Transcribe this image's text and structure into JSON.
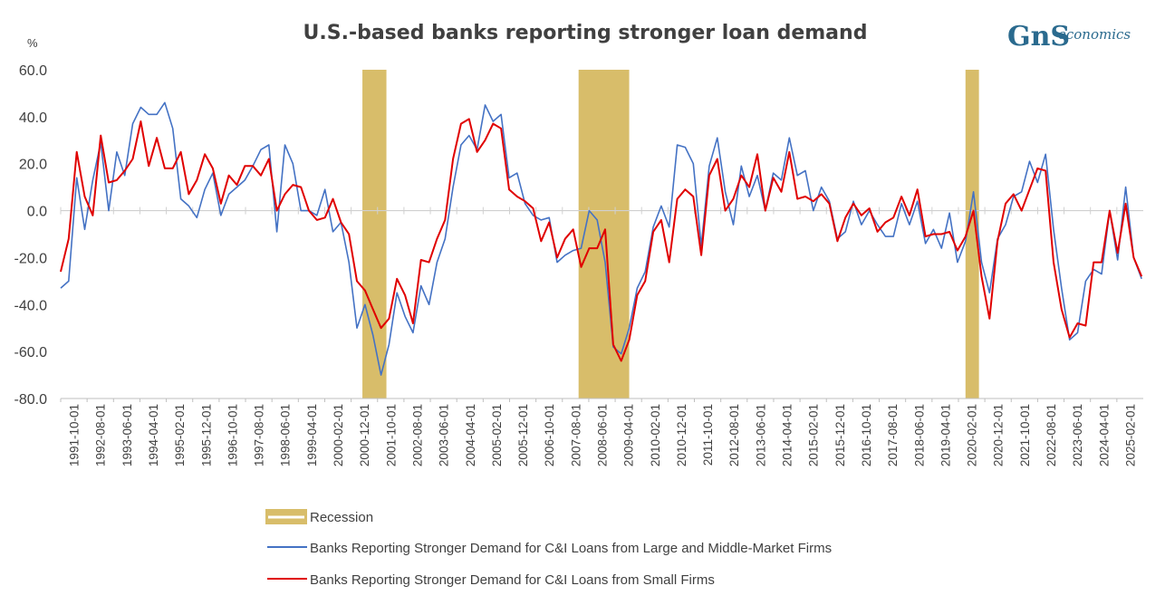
{
  "logo": {
    "mark": "GnS",
    "text": "economics"
  },
  "chart_data": {
    "type": "line",
    "title": "U.S.-based banks reporting stronger loan demand",
    "ylabel": "%",
    "ylim": [
      -80,
      60
    ],
    "yticks": [
      60,
      40,
      20,
      0,
      -20,
      -40,
      -60,
      -80
    ],
    "ytick_labels": [
      "60.0",
      "40.0",
      "20.0",
      "0.0",
      "-20.0",
      "-40.0",
      "-60.0",
      "-80.0"
    ],
    "xlim": [
      1991.75,
      2025.55
    ],
    "xtick_labels": [
      "1991-10-01",
      "1992-08-01",
      "1993-06-01",
      "1994-04-01",
      "1995-02-01",
      "1995-12-01",
      "1996-10-01",
      "1997-08-01",
      "1998-06-01",
      "1999-04-01",
      "2000-02-01",
      "2000-12-01",
      "2001-10-01",
      "2002-08-01",
      "2003-06-01",
      "2004-04-01",
      "2005-02-01",
      "2005-12-01",
      "2006-10-01",
      "2007-08-01",
      "2008-06-01",
      "2009-04-01",
      "2010-02-01",
      "2010-12-01",
      "2011-10-01",
      "2012-08-01",
      "2013-06-01",
      "2014-04-01",
      "2015-02-01",
      "2015-12-01",
      "2016-10-01",
      "2017-08-01",
      "2018-06-01",
      "2019-04-01",
      "2020-02-01",
      "2020-12-01",
      "2021-10-01",
      "2022-08-01",
      "2023-06-01",
      "2024-04-01",
      "2025-02-01"
    ],
    "grid": false,
    "legend_position": "bottom",
    "recessions": [
      {
        "start": 2001.17,
        "end": 2001.92
      },
      {
        "start": 2007.92,
        "end": 2009.5
      },
      {
        "start": 2020.0,
        "end": 2020.42
      }
    ],
    "series": [
      {
        "name": "Recession",
        "kind": "band",
        "color": "#d8bd6a"
      },
      {
        "name": "Banks Reporting Stronger Demand for C&I Loans from Large and Middle-Market Firms",
        "color": "#4472c4",
        "points": [
          [
            1991.75,
            -33
          ],
          [
            1992.0,
            -30
          ],
          [
            1992.25,
            14
          ],
          [
            1992.5,
            -8
          ],
          [
            1992.75,
            13
          ],
          [
            1993.0,
            29
          ],
          [
            1993.25,
            0
          ],
          [
            1993.5,
            25
          ],
          [
            1993.75,
            15
          ],
          [
            1994.0,
            37
          ],
          [
            1994.25,
            44
          ],
          [
            1994.5,
            41
          ],
          [
            1994.75,
            41
          ],
          [
            1995.0,
            46
          ],
          [
            1995.25,
            35
          ],
          [
            1995.5,
            5
          ],
          [
            1995.75,
            2
          ],
          [
            1996.0,
            -3
          ],
          [
            1996.25,
            9
          ],
          [
            1996.5,
            16
          ],
          [
            1996.75,
            -2
          ],
          [
            1997.0,
            7
          ],
          [
            1997.25,
            10
          ],
          [
            1997.5,
            13
          ],
          [
            1997.75,
            19
          ],
          [
            1998.0,
            26
          ],
          [
            1998.25,
            28
          ],
          [
            1998.5,
            -9
          ],
          [
            1998.75,
            28
          ],
          [
            1999.0,
            20
          ],
          [
            1999.25,
            0
          ],
          [
            1999.5,
            0
          ],
          [
            1999.75,
            -2
          ],
          [
            2000.0,
            9
          ],
          [
            2000.25,
            -9
          ],
          [
            2000.5,
            -5
          ],
          [
            2000.75,
            -22
          ],
          [
            2001.0,
            -50
          ],
          [
            2001.25,
            -40
          ],
          [
            2001.5,
            -53
          ],
          [
            2001.75,
            -70
          ],
          [
            2002.0,
            -57
          ],
          [
            2002.25,
            -35
          ],
          [
            2002.5,
            -45
          ],
          [
            2002.75,
            -52
          ],
          [
            2003.0,
            -32
          ],
          [
            2003.25,
            -40
          ],
          [
            2003.5,
            -22
          ],
          [
            2003.75,
            -12
          ],
          [
            2004.0,
            10
          ],
          [
            2004.25,
            28
          ],
          [
            2004.5,
            32
          ],
          [
            2004.75,
            26
          ],
          [
            2005.0,
            45
          ],
          [
            2005.25,
            38
          ],
          [
            2005.5,
            41
          ],
          [
            2005.75,
            14
          ],
          [
            2006.0,
            16
          ],
          [
            2006.25,
            3
          ],
          [
            2006.5,
            -2
          ],
          [
            2006.75,
            -4
          ],
          [
            2007.0,
            -3
          ],
          [
            2007.25,
            -22
          ],
          [
            2007.5,
            -19
          ],
          [
            2007.75,
            -17
          ],
          [
            2008.0,
            -16
          ],
          [
            2008.25,
            0
          ],
          [
            2008.5,
            -4
          ],
          [
            2008.75,
            -22
          ],
          [
            2009.0,
            -58
          ],
          [
            2009.25,
            -61
          ],
          [
            2009.5,
            -50
          ],
          [
            2009.75,
            -33
          ],
          [
            2010.0,
            -26
          ],
          [
            2010.25,
            -7
          ],
          [
            2010.5,
            2
          ],
          [
            2010.75,
            -7
          ],
          [
            2011.0,
            28
          ],
          [
            2011.25,
            27
          ],
          [
            2011.5,
            20
          ],
          [
            2011.75,
            -15
          ],
          [
            2012.0,
            19
          ],
          [
            2012.25,
            31
          ],
          [
            2012.5,
            8
          ],
          [
            2012.75,
            -6
          ],
          [
            2013.0,
            19
          ],
          [
            2013.25,
            6
          ],
          [
            2013.5,
            15
          ],
          [
            2013.75,
            0
          ],
          [
            2014.0,
            16
          ],
          [
            2014.25,
            13
          ],
          [
            2014.5,
            31
          ],
          [
            2014.75,
            15
          ],
          [
            2015.0,
            17
          ],
          [
            2015.25,
            0
          ],
          [
            2015.5,
            10
          ],
          [
            2015.75,
            4
          ],
          [
            2016.0,
            -12
          ],
          [
            2016.25,
            -9
          ],
          [
            2016.5,
            4
          ],
          [
            2016.75,
            -6
          ],
          [
            2017.0,
            0
          ],
          [
            2017.25,
            -6
          ],
          [
            2017.5,
            -11
          ],
          [
            2017.75,
            -11
          ],
          [
            2018.0,
            3
          ],
          [
            2018.25,
            -6
          ],
          [
            2018.5,
            4
          ],
          [
            2018.75,
            -14
          ],
          [
            2019.0,
            -8
          ],
          [
            2019.25,
            -16
          ],
          [
            2019.5,
            -1
          ],
          [
            2019.75,
            -22
          ],
          [
            2020.0,
            -13
          ],
          [
            2020.25,
            8
          ],
          [
            2020.5,
            -22
          ],
          [
            2020.75,
            -35
          ],
          [
            2021.0,
            -12
          ],
          [
            2021.25,
            -6
          ],
          [
            2021.5,
            6
          ],
          [
            2021.75,
            8
          ],
          [
            2022.0,
            21
          ],
          [
            2022.25,
            12
          ],
          [
            2022.5,
            24
          ],
          [
            2022.75,
            -8
          ],
          [
            2023.0,
            -33
          ],
          [
            2023.25,
            -55
          ],
          [
            2023.5,
            -52
          ],
          [
            2023.75,
            -30
          ],
          [
            2024.0,
            -25
          ],
          [
            2024.25,
            -27
          ],
          [
            2024.5,
            0
          ],
          [
            2024.75,
            -21
          ],
          [
            2025.0,
            10
          ],
          [
            2025.25,
            -20
          ],
          [
            2025.5,
            -29
          ]
        ]
      },
      {
        "name": "Banks Reporting Stronger Demand for C&I Loans from Small Firms",
        "color": "#e00000",
        "points": [
          [
            1991.75,
            -26
          ],
          [
            1992.0,
            -12
          ],
          [
            1992.25,
            25
          ],
          [
            1992.5,
            6
          ],
          [
            1992.75,
            -2
          ],
          [
            1993.0,
            32
          ],
          [
            1993.25,
            12
          ],
          [
            1993.5,
            13
          ],
          [
            1993.75,
            17
          ],
          [
            1994.0,
            22
          ],
          [
            1994.25,
            38
          ],
          [
            1994.5,
            19
          ],
          [
            1994.75,
            31
          ],
          [
            1995.0,
            18
          ],
          [
            1995.25,
            18
          ],
          [
            1995.5,
            25
          ],
          [
            1995.75,
            7
          ],
          [
            1996.0,
            13
          ],
          [
            1996.25,
            24
          ],
          [
            1996.5,
            18
          ],
          [
            1996.75,
            3
          ],
          [
            1997.0,
            15
          ],
          [
            1997.25,
            11
          ],
          [
            1997.5,
            19
          ],
          [
            1997.75,
            19
          ],
          [
            1998.0,
            15
          ],
          [
            1998.25,
            22
          ],
          [
            1998.5,
            0
          ],
          [
            1998.75,
            7
          ],
          [
            1999.0,
            11
          ],
          [
            1999.25,
            10
          ],
          [
            1999.5,
            0
          ],
          [
            1999.75,
            -4
          ],
          [
            2000.0,
            -3
          ],
          [
            2000.25,
            5
          ],
          [
            2000.5,
            -5
          ],
          [
            2000.75,
            -10
          ],
          [
            2001.0,
            -30
          ],
          [
            2001.25,
            -34
          ],
          [
            2001.5,
            -42
          ],
          [
            2001.75,
            -50
          ],
          [
            2002.0,
            -46
          ],
          [
            2002.25,
            -29
          ],
          [
            2002.5,
            -36
          ],
          [
            2002.75,
            -48
          ],
          [
            2003.0,
            -21
          ],
          [
            2003.25,
            -22
          ],
          [
            2003.5,
            -12
          ],
          [
            2003.75,
            -4
          ],
          [
            2004.0,
            22
          ],
          [
            2004.25,
            37
          ],
          [
            2004.5,
            39
          ],
          [
            2004.75,
            25
          ],
          [
            2005.0,
            30
          ],
          [
            2005.25,
            37
          ],
          [
            2005.5,
            35
          ],
          [
            2005.75,
            9
          ],
          [
            2006.0,
            6
          ],
          [
            2006.25,
            4
          ],
          [
            2006.5,
            1
          ],
          [
            2006.75,
            -13
          ],
          [
            2007.0,
            -5
          ],
          [
            2007.25,
            -20
          ],
          [
            2007.5,
            -12
          ],
          [
            2007.75,
            -8
          ],
          [
            2008.0,
            -24
          ],
          [
            2008.25,
            -16
          ],
          [
            2008.5,
            -16
          ],
          [
            2008.75,
            -8
          ],
          [
            2009.0,
            -57
          ],
          [
            2009.25,
            -64
          ],
          [
            2009.5,
            -55
          ],
          [
            2009.75,
            -36
          ],
          [
            2010.0,
            -30
          ],
          [
            2010.25,
            -9
          ],
          [
            2010.5,
            -4
          ],
          [
            2010.75,
            -22
          ],
          [
            2011.0,
            5
          ],
          [
            2011.25,
            9
          ],
          [
            2011.5,
            6
          ],
          [
            2011.75,
            -19
          ],
          [
            2012.0,
            15
          ],
          [
            2012.25,
            22
          ],
          [
            2012.5,
            0
          ],
          [
            2012.75,
            5
          ],
          [
            2013.0,
            15
          ],
          [
            2013.25,
            10
          ],
          [
            2013.5,
            24
          ],
          [
            2013.75,
            0
          ],
          [
            2014.0,
            14
          ],
          [
            2014.25,
            8
          ],
          [
            2014.5,
            25
          ],
          [
            2014.75,
            5
          ],
          [
            2015.0,
            6
          ],
          [
            2015.25,
            4
          ],
          [
            2015.5,
            7
          ],
          [
            2015.75,
            3
          ],
          [
            2016.0,
            -13
          ],
          [
            2016.25,
            -3
          ],
          [
            2016.5,
            3
          ],
          [
            2016.75,
            -2
          ],
          [
            2017.0,
            1
          ],
          [
            2017.25,
            -9
          ],
          [
            2017.5,
            -5
          ],
          [
            2017.75,
            -3
          ],
          [
            2018.0,
            6
          ],
          [
            2018.25,
            -2
          ],
          [
            2018.5,
            9
          ],
          [
            2018.75,
            -11
          ],
          [
            2019.0,
            -10
          ],
          [
            2019.25,
            -10
          ],
          [
            2019.5,
            -9
          ],
          [
            2019.75,
            -17
          ],
          [
            2020.0,
            -11
          ],
          [
            2020.25,
            0
          ],
          [
            2020.5,
            -28
          ],
          [
            2020.75,
            -46
          ],
          [
            2021.0,
            -13
          ],
          [
            2021.25,
            3
          ],
          [
            2021.5,
            7
          ],
          [
            2021.75,
            0
          ],
          [
            2022.0,
            9
          ],
          [
            2022.25,
            18
          ],
          [
            2022.5,
            17
          ],
          [
            2022.75,
            -22
          ],
          [
            2023.0,
            -42
          ],
          [
            2023.25,
            -54
          ],
          [
            2023.5,
            -48
          ],
          [
            2023.75,
            -49
          ],
          [
            2024.0,
            -22
          ],
          [
            2024.25,
            -22
          ],
          [
            2024.5,
            0
          ],
          [
            2024.75,
            -18
          ],
          [
            2025.0,
            3
          ],
          [
            2025.25,
            -20
          ],
          [
            2025.5,
            -28
          ]
        ]
      }
    ]
  }
}
